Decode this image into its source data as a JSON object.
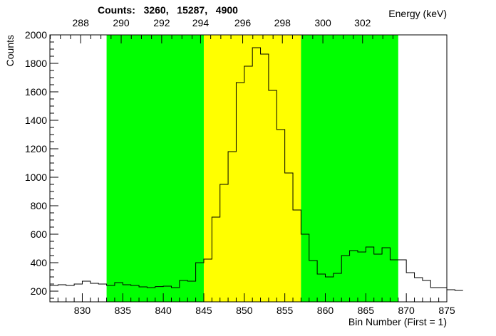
{
  "counts_text": {
    "prefix": "Counts:",
    "values": [
      "3260,",
      "15287,",
      "4900"
    ]
  },
  "chart_data": {
    "type": "histogram",
    "xlabel": "Bin Number (First = 1)",
    "ylabel": "Counts",
    "top_axis_label": "Energy (keV)",
    "xlim": [
      826,
      875
    ],
    "ylim": [
      125,
      2000
    ],
    "x_ticks": [
      830,
      835,
      840,
      845,
      850,
      855,
      860,
      865,
      870,
      875
    ],
    "y_ticks": [
      200,
      400,
      600,
      800,
      1000,
      1200,
      1400,
      1600,
      1800,
      2000
    ],
    "top_ticks": [
      "288",
      "290",
      "292",
      "294",
      "296",
      "298",
      "300",
      "302"
    ],
    "top_tick_bins": [
      829.8,
      834.8,
      839.8,
      844.6,
      849.8,
      854.7,
      859.7,
      864.6
    ],
    "regions": [
      {
        "name": "left-background",
        "x0": 833,
        "x1": 845,
        "color": "#00ff00"
      },
      {
        "name": "peak",
        "x0": 845,
        "x1": 857,
        "color": "#ffff00"
      },
      {
        "name": "right-background",
        "x0": 857,
        "x1": 869,
        "color": "#00ff00"
      }
    ],
    "bin_start": 826,
    "bin_width": 1,
    "values": [
      240,
      245,
      240,
      250,
      270,
      255,
      250,
      240,
      260,
      245,
      240,
      230,
      225,
      232,
      235,
      225,
      275,
      270,
      400,
      425,
      720,
      950,
      1180,
      1665,
      1780,
      1910,
      1865,
      1610,
      1335,
      1030,
      770,
      600,
      415,
      320,
      300,
      325,
      450,
      485,
      475,
      510,
      460,
      505,
      420,
      420,
      330,
      295,
      275,
      225,
      225,
      210,
      205
    ]
  }
}
